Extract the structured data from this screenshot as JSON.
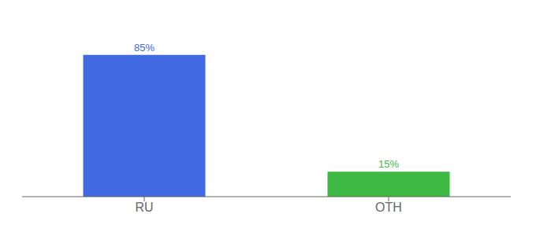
{
  "chart_data": {
    "type": "bar",
    "categories": [
      "RU",
      "OTH"
    ],
    "values": [
      85,
      15
    ],
    "value_labels": [
      "85%",
      "15%"
    ],
    "colors": [
      "#4169e1",
      "#3cb843"
    ],
    "ylim": [
      0,
      100
    ],
    "data_labels": true,
    "tick_labels": "x",
    "grid": false
  }
}
